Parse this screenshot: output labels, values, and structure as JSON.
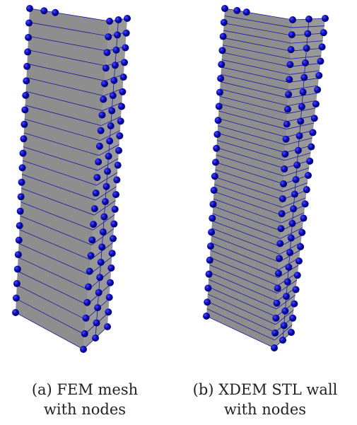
{
  "panels": [
    {
      "caption": [
        "(a) FEM mesh",
        "with nodes"
      ]
    },
    {
      "caption": [
        "(b) XDEM STL wall",
        "with nodes"
      ]
    }
  ]
}
